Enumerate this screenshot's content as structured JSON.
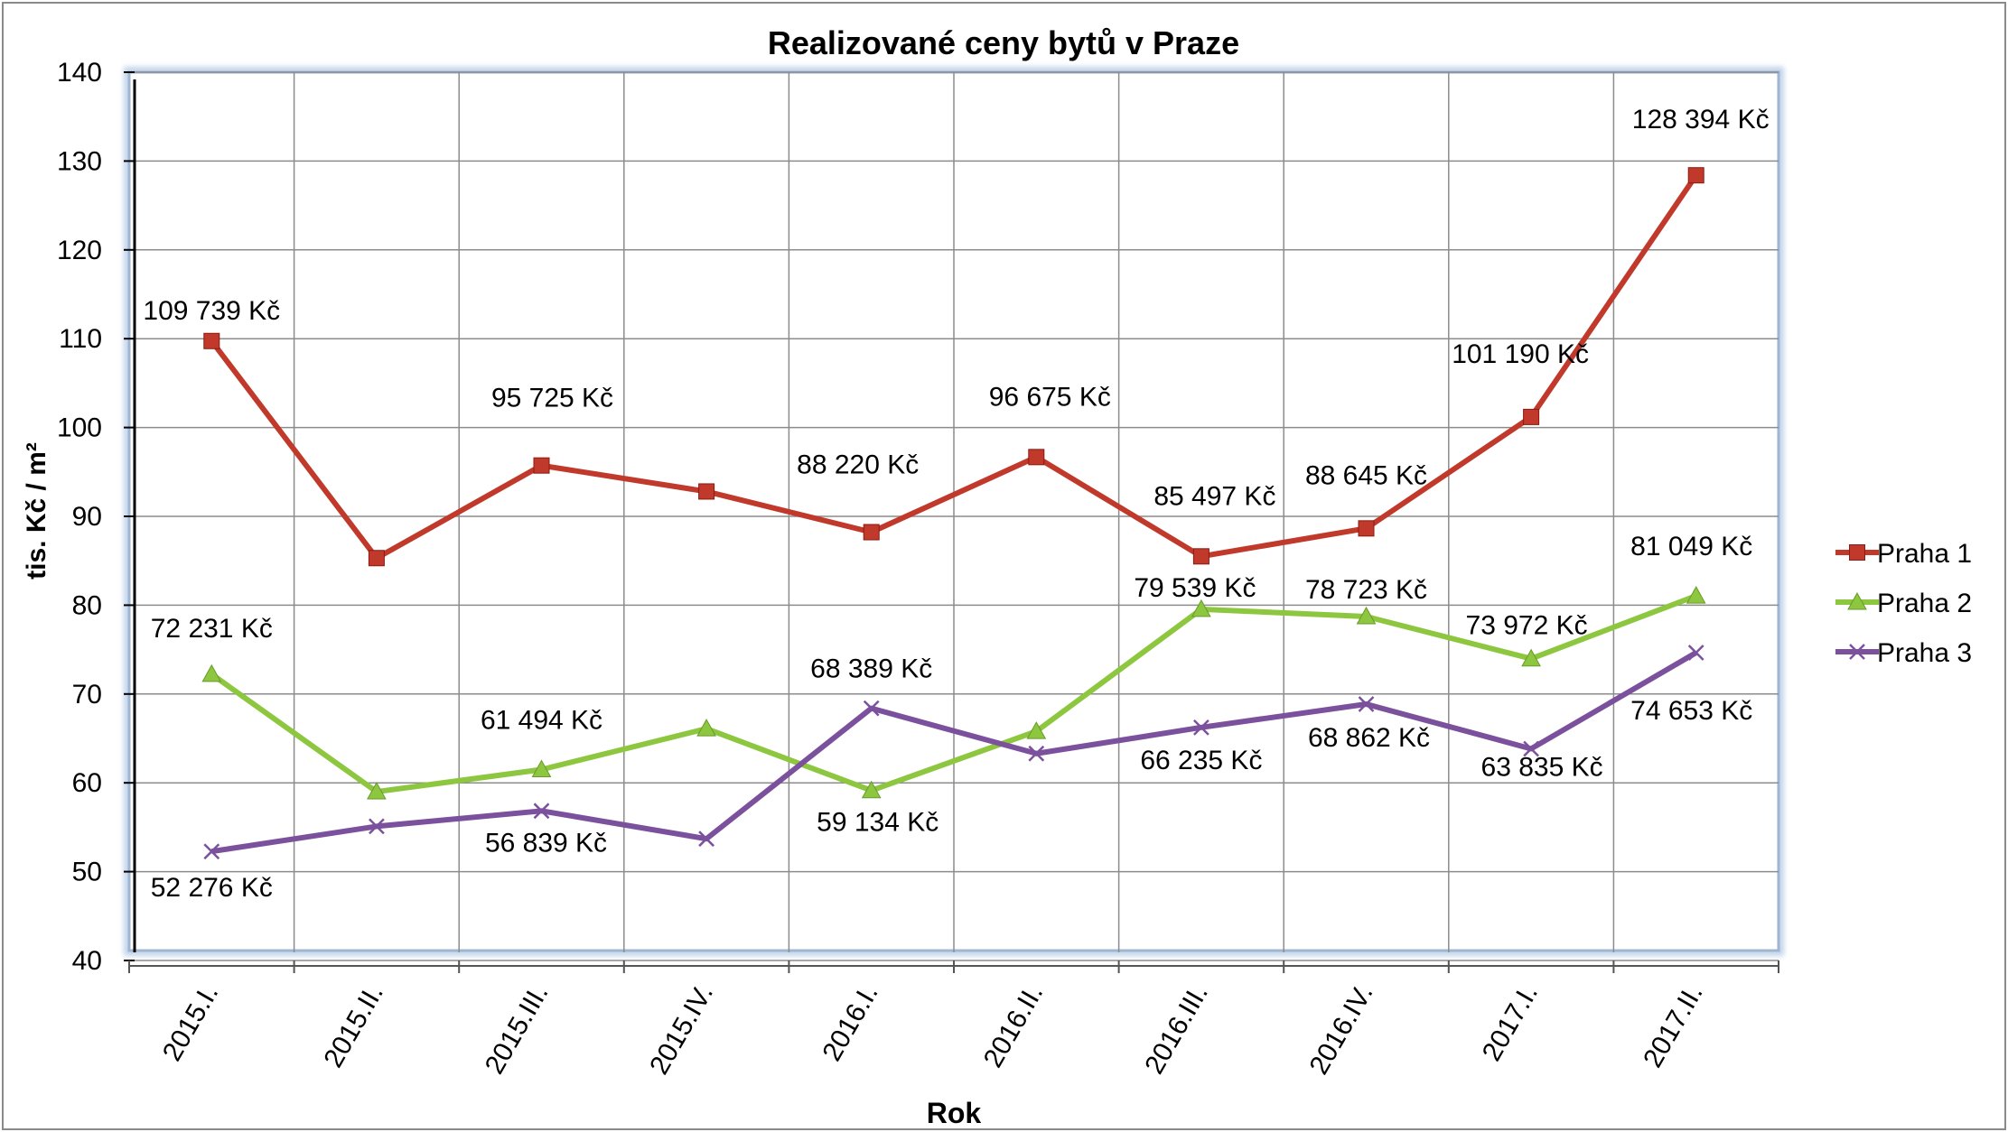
{
  "chart_data": {
    "type": "line",
    "title": "Realizované ceny bytů v Praze",
    "xlabel": "Rok",
    "ylabel": "tis. Kč / m²",
    "ylim": [
      40,
      140
    ],
    "yticks": [
      "40",
      "50",
      "60",
      "70",
      "80",
      "90",
      "100",
      "110",
      "120",
      "130",
      "140"
    ],
    "categories": [
      "2015.I.",
      "2015.II.",
      "2015.III.",
      "2015.IV.",
      "2016.I.",
      "2016.II.",
      "2016.III.",
      "2016.IV.",
      "2017.I.",
      "2017.II."
    ],
    "grid": true,
    "legend_position": "right",
    "series": [
      {
        "name": "Praha 1",
        "color": "#c0392b",
        "marker": "square",
        "values": [
          109.739,
          85.3,
          95.725,
          92.8,
          88.22,
          96.675,
          85.497,
          88.645,
          101.19,
          128.394
        ],
        "labels": [
          "109 739 Kč",
          "",
          "95 725 Kč",
          "",
          "88 220 Kč",
          "96 675 Kč",
          "85 497 Kč",
          "88 645 Kč",
          "101 190 Kč",
          "128 394 Kč"
        ]
      },
      {
        "name": "Praha 2",
        "color": "#8dc63f",
        "marker": "triangle",
        "values": [
          72.231,
          59.0,
          61.494,
          66.1,
          59.134,
          65.8,
          79.539,
          78.723,
          73.972,
          81.049
        ],
        "labels": [
          "72 231 Kč",
          "",
          "61 494 Kč",
          "",
          "59 134 Kč",
          "",
          "79 539 Kč",
          "78 723 Kč",
          "73 972 Kč",
          "81 049 Kč"
        ]
      },
      {
        "name": "Praha 3",
        "color": "#7b519d",
        "marker": "x",
        "values": [
          52.276,
          55.1,
          56.839,
          53.7,
          68.389,
          63.3,
          66.235,
          68.862,
          63.835,
          74.653
        ],
        "labels": [
          "52 276 Kč",
          "",
          "56 839 Kč",
          "",
          "68 389 Kč",
          "",
          "66 235 Kč",
          "68 862 Kč",
          "63 835 Kč",
          "74 653 Kč"
        ]
      }
    ]
  }
}
